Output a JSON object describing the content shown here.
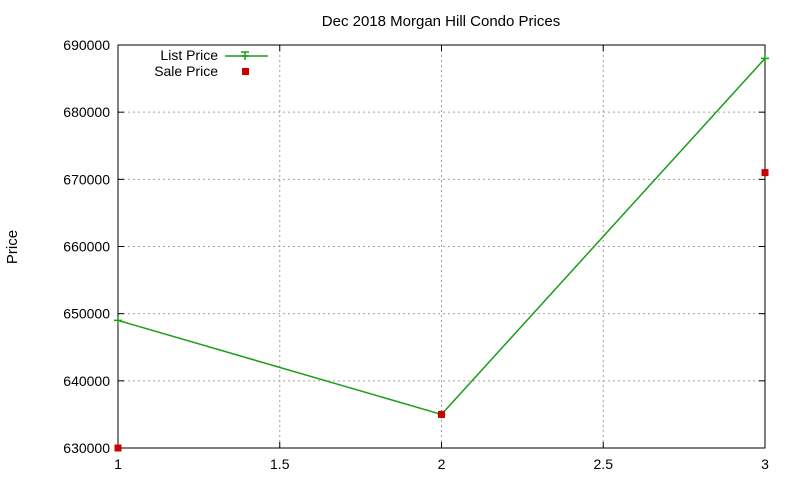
{
  "chart_data": {
    "type": "line",
    "title": "Dec 2018 Morgan Hill Condo Prices",
    "xlabel": "",
    "ylabel": "Price",
    "xlim": [
      1,
      3
    ],
    "ylim": [
      630000,
      690000
    ],
    "x_ticks": [
      1,
      1.5,
      2,
      2.5,
      3
    ],
    "x_tick_labels": [
      "1",
      "1.5",
      "2",
      "2.5",
      "3"
    ],
    "y_ticks": [
      630000,
      640000,
      650000,
      660000,
      670000,
      680000,
      690000
    ],
    "y_tick_labels": [
      "630000",
      "640000",
      "650000",
      "660000",
      "670000",
      "680000",
      "690000"
    ],
    "grid": true,
    "legend_position": "top-left",
    "series": [
      {
        "name": "List Price",
        "style": "linespoints",
        "marker": "plus",
        "color": "#1a9e1a",
        "x": [
          1,
          2,
          3
        ],
        "y": [
          649000,
          635000,
          688000
        ]
      },
      {
        "name": "Sale Price",
        "style": "points",
        "marker": "square",
        "color": "#cc0000",
        "x": [
          1,
          2,
          3
        ],
        "y": [
          630000,
          635000,
          671000
        ]
      }
    ]
  }
}
